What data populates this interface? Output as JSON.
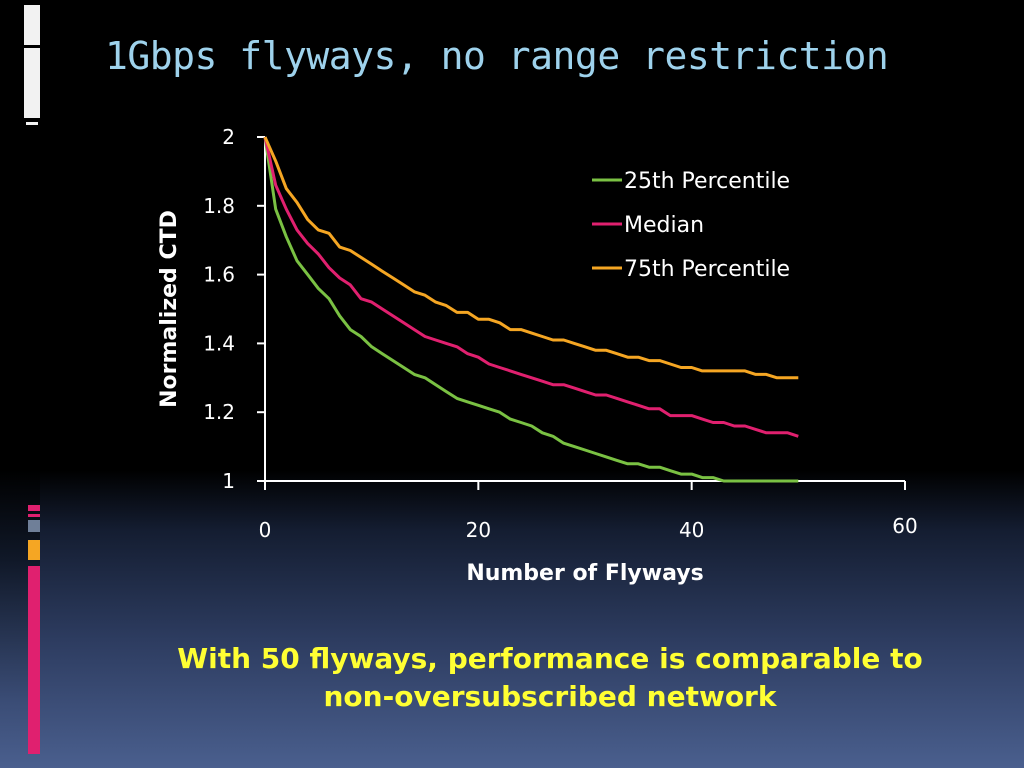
{
  "slide": {
    "title": "1Gbps flyways, no range restriction",
    "caption_line1": "With 50 flyways, performance is comparable to",
    "caption_line2": "non-oversubscribed network"
  },
  "colors": {
    "background": "#000000",
    "title": "#9ed2ec",
    "caption": "#ffff33",
    "axis": "#ffffff",
    "series_25th": "#7ac143",
    "series_median": "#e0206f",
    "series_75th": "#f5a623"
  },
  "chart_data": {
    "type": "line",
    "title": "",
    "xlabel": "Number of Flyways",
    "ylabel": "Normalized CTD",
    "xlim": [
      0,
      60
    ],
    "ylim": [
      1,
      2
    ],
    "xticks": [
      "0",
      "20",
      "40",
      "60"
    ],
    "yticks": [
      "1",
      "1.2",
      "1.4",
      "1.6",
      "1.8",
      "2"
    ],
    "grid": false,
    "legend_position": "top-right",
    "x": [
      0,
      1,
      2,
      3,
      4,
      5,
      6,
      7,
      8,
      9,
      10,
      11,
      12,
      13,
      14,
      15,
      16,
      17,
      18,
      19,
      20,
      21,
      22,
      23,
      24,
      25,
      26,
      27,
      28,
      29,
      30,
      31,
      32,
      33,
      34,
      35,
      36,
      37,
      38,
      39,
      40,
      41,
      42,
      43,
      44,
      45,
      46,
      47,
      48,
      49,
      50
    ],
    "series": [
      {
        "name": "25th Percentile",
        "color": "#7ac143",
        "values": [
          2.0,
          1.79,
          1.71,
          1.64,
          1.6,
          1.56,
          1.53,
          1.48,
          1.44,
          1.42,
          1.39,
          1.37,
          1.35,
          1.33,
          1.31,
          1.3,
          1.28,
          1.26,
          1.24,
          1.23,
          1.22,
          1.21,
          1.2,
          1.18,
          1.17,
          1.16,
          1.14,
          1.13,
          1.11,
          1.1,
          1.09,
          1.08,
          1.07,
          1.06,
          1.05,
          1.05,
          1.04,
          1.04,
          1.03,
          1.02,
          1.02,
          1.01,
          1.01,
          1.0,
          1.0,
          1.0,
          1.0,
          1.0,
          1.0,
          1.0,
          1.0
        ]
      },
      {
        "name": "Median",
        "color": "#e0206f",
        "values": [
          2.0,
          1.86,
          1.79,
          1.73,
          1.69,
          1.66,
          1.62,
          1.59,
          1.57,
          1.53,
          1.52,
          1.5,
          1.48,
          1.46,
          1.44,
          1.42,
          1.41,
          1.4,
          1.39,
          1.37,
          1.36,
          1.34,
          1.33,
          1.32,
          1.31,
          1.3,
          1.29,
          1.28,
          1.28,
          1.27,
          1.26,
          1.25,
          1.25,
          1.24,
          1.23,
          1.22,
          1.21,
          1.21,
          1.19,
          1.19,
          1.19,
          1.18,
          1.17,
          1.17,
          1.16,
          1.16,
          1.15,
          1.14,
          1.14,
          1.14,
          1.13
        ]
      },
      {
        "name": "75th Percentile",
        "color": "#f5a623",
        "values": [
          2.0,
          1.93,
          1.85,
          1.81,
          1.76,
          1.73,
          1.72,
          1.68,
          1.67,
          1.65,
          1.63,
          1.61,
          1.59,
          1.57,
          1.55,
          1.54,
          1.52,
          1.51,
          1.49,
          1.49,
          1.47,
          1.47,
          1.46,
          1.44,
          1.44,
          1.43,
          1.42,
          1.41,
          1.41,
          1.4,
          1.39,
          1.38,
          1.38,
          1.37,
          1.36,
          1.36,
          1.35,
          1.35,
          1.34,
          1.33,
          1.33,
          1.32,
          1.32,
          1.32,
          1.32,
          1.32,
          1.31,
          1.31,
          1.3,
          1.3,
          1.3
        ]
      }
    ]
  }
}
